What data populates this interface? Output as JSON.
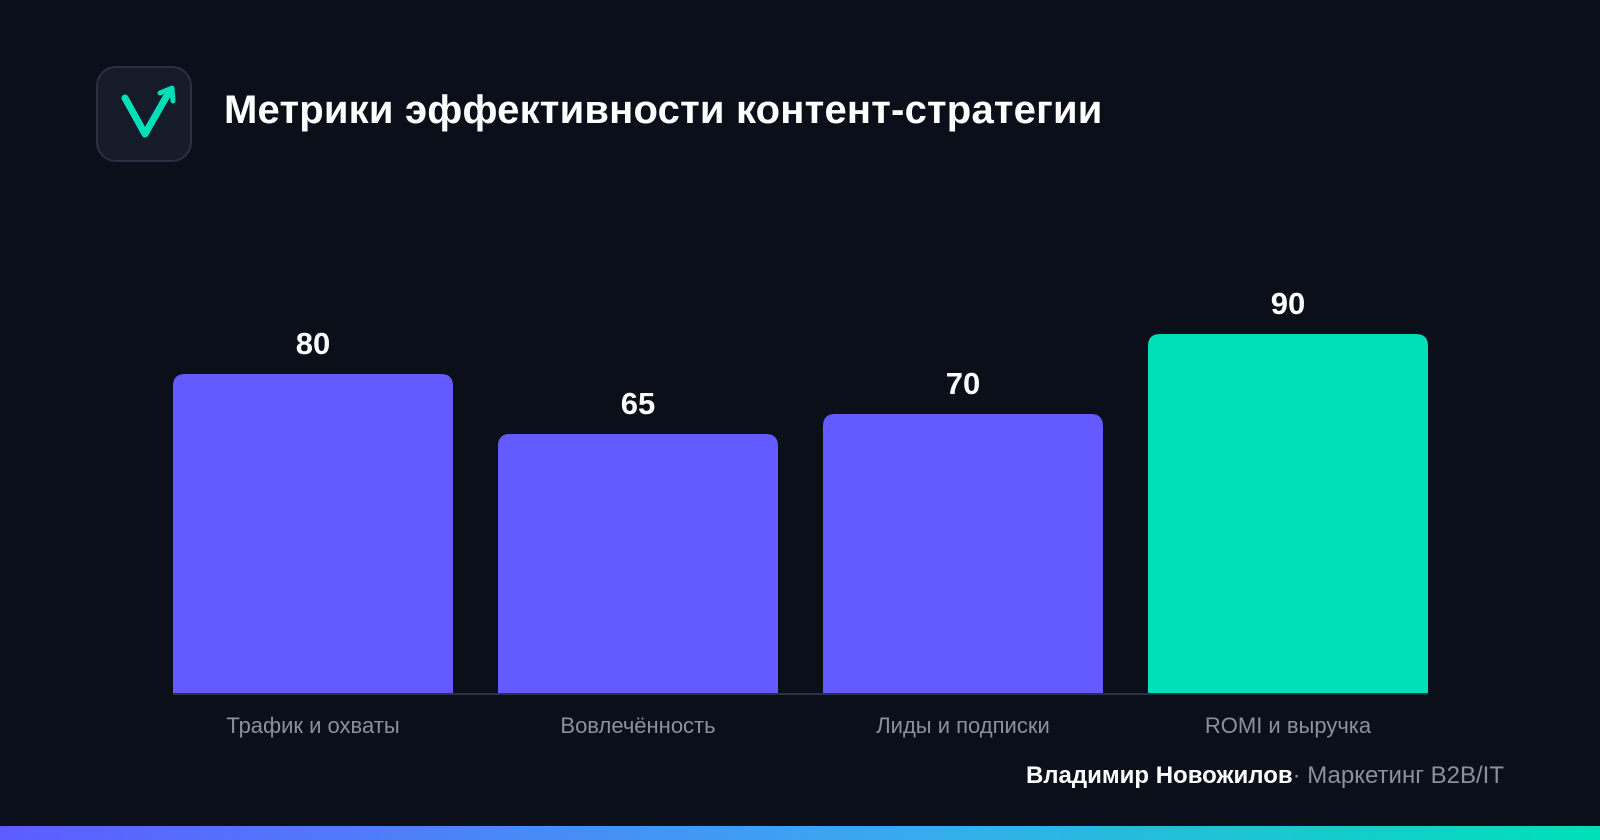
{
  "header": {
    "title": "Метрики эффективности контент-стратегии",
    "logo_icon": "checkmark-arrow-logo-icon"
  },
  "chart_data": {
    "type": "bar",
    "title": "Метрики эффективности контент-стратегии",
    "categories": [
      "Трафик и охваты",
      "Вовлечённость",
      "Лиды и подписки",
      "ROMI и выручка"
    ],
    "values": [
      80,
      65,
      70,
      90
    ],
    "value_labels": [
      "80",
      "65",
      "70",
      "90"
    ],
    "ylim": [
      0,
      100
    ],
    "grid": false,
    "legend": "none",
    "colors": [
      "#635bff",
      "#635bff",
      "#635bff",
      "#00e0b8"
    ]
  },
  "footer": {
    "author_name": "Владимир Новожилов",
    "separator": "·",
    "author_role": "Маркетинг B2B/IT"
  },
  "theme": {
    "background": "#0b0f19",
    "primary_bar": "#635bff",
    "accent": "#00e0b8",
    "label_color": "#8b90a0"
  }
}
